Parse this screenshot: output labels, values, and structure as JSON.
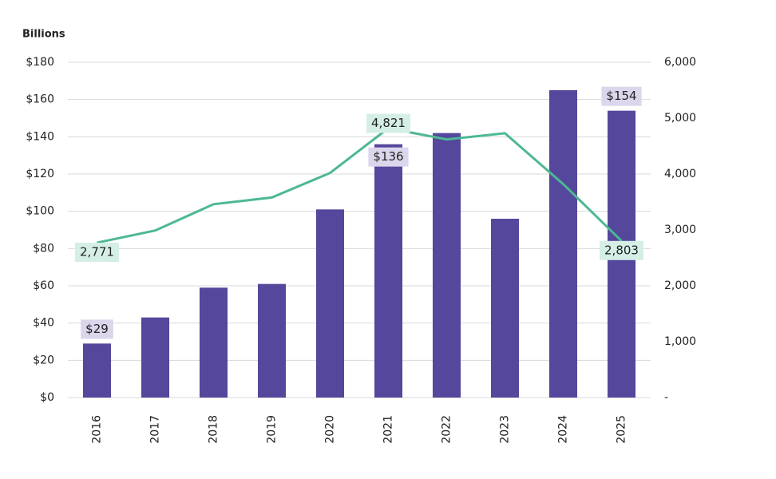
{
  "chart_data": {
    "type": "bar",
    "y_axis_label": "Billions",
    "categories": [
      "2016",
      "2017",
      "2018",
      "2019",
      "2020",
      "2021",
      "2022",
      "2023",
      "2024",
      "2025"
    ],
    "series": [
      {
        "type": "bar",
        "color": "#54479c",
        "values": [
          29,
          43,
          59,
          61,
          101,
          136,
          142,
          96,
          165,
          154
        ],
        "value_labels": [
          "$29",
          null,
          null,
          null,
          null,
          "$136",
          null,
          null,
          null,
          "$154"
        ]
      },
      {
        "type": "line",
        "axis": "y2",
        "color": "#4db893",
        "values": [
          2771,
          2990,
          3460,
          3580,
          4020,
          4821,
          4620,
          4730,
          3820,
          2803
        ],
        "value_labels": [
          "2,771",
          null,
          null,
          null,
          null,
          "4,821",
          null,
          null,
          null,
          "2,803"
        ]
      }
    ],
    "ylim": [
      0,
      180
    ],
    "yticks": [
      {
        "value": 0,
        "label": "$0"
      },
      {
        "value": 20,
        "label": "$20"
      },
      {
        "value": 40,
        "label": "$40"
      },
      {
        "value": 60,
        "label": "$60"
      },
      {
        "value": 80,
        "label": "$80"
      },
      {
        "value": 100,
        "label": "$100"
      },
      {
        "value": 120,
        "label": "$120"
      },
      {
        "value": 140,
        "label": "$140"
      },
      {
        "value": 160,
        "label": "$160"
      },
      {
        "value": 180,
        "label": "$180"
      }
    ],
    "y2lim": [
      0,
      6000
    ],
    "y2ticks": [
      {
        "value": 0,
        "label": "-"
      },
      {
        "value": 1000,
        "label": "1,000"
      },
      {
        "value": 2000,
        "label": "2,000"
      },
      {
        "value": 3000,
        "label": "3,000"
      },
      {
        "value": 4000,
        "label": "4,000"
      },
      {
        "value": 5000,
        "label": "5,000"
      },
      {
        "value": 6000,
        "label": "6,000"
      }
    ],
    "grid": true
  }
}
